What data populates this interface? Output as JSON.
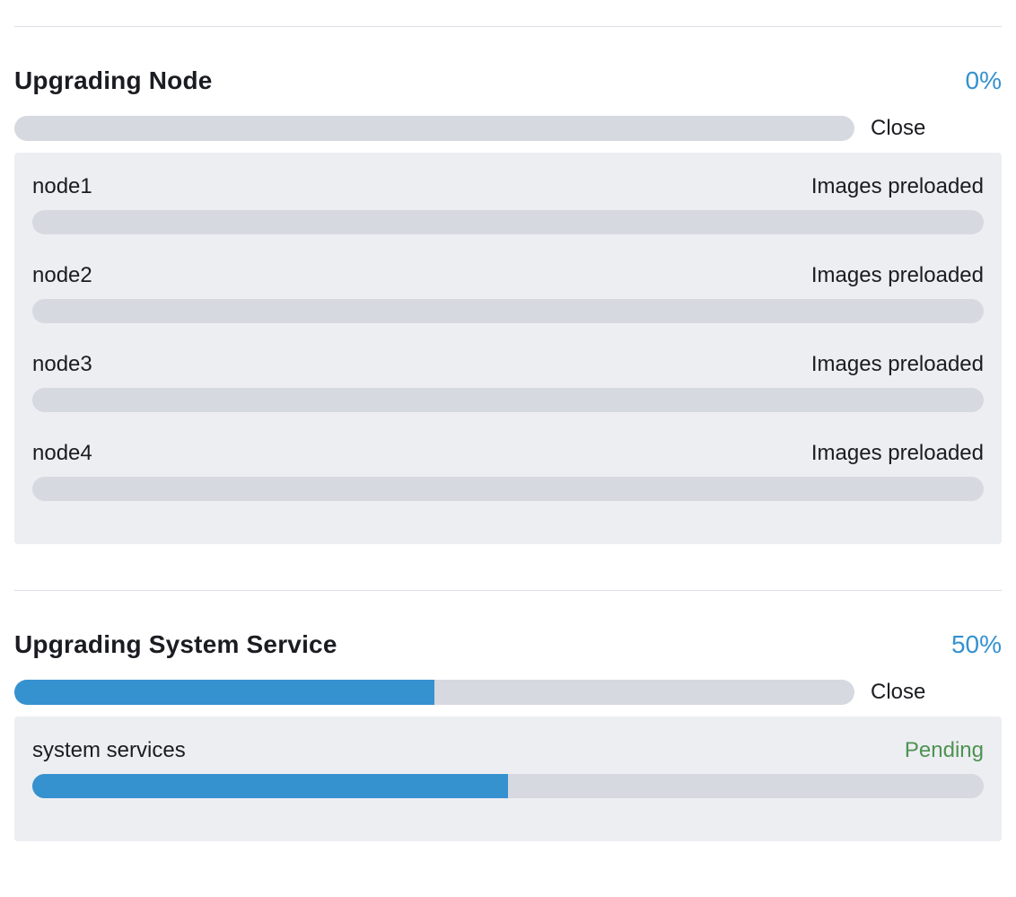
{
  "colors": {
    "accent_blue": "#3691cf",
    "success_green": "#4e9351",
    "text_dark": "#1b1c21",
    "track_gray": "#d7d9e0",
    "panel_bg": "#eceef2",
    "divider_gray": "#dcdee4",
    "page_bg": "#ffffff"
  },
  "sections": [
    {
      "title": "Upgrading Node",
      "percent": "0%",
      "progress": 0,
      "close_label": "Close",
      "rows": [
        {
          "name": "node1",
          "status": "Images preloaded",
          "progress": 0
        },
        {
          "name": "node2",
          "status": "Images preloaded",
          "progress": 0
        },
        {
          "name": "node3",
          "status": "Images preloaded",
          "progress": 0
        },
        {
          "name": "node4",
          "status": "Images preloaded",
          "progress": 0
        }
      ]
    },
    {
      "title": "Upgrading System Service",
      "percent": "50%",
      "progress": 50,
      "close_label": "Close",
      "rows": [
        {
          "name": "system services",
          "status": "Pending",
          "progress": 50
        }
      ]
    }
  ]
}
